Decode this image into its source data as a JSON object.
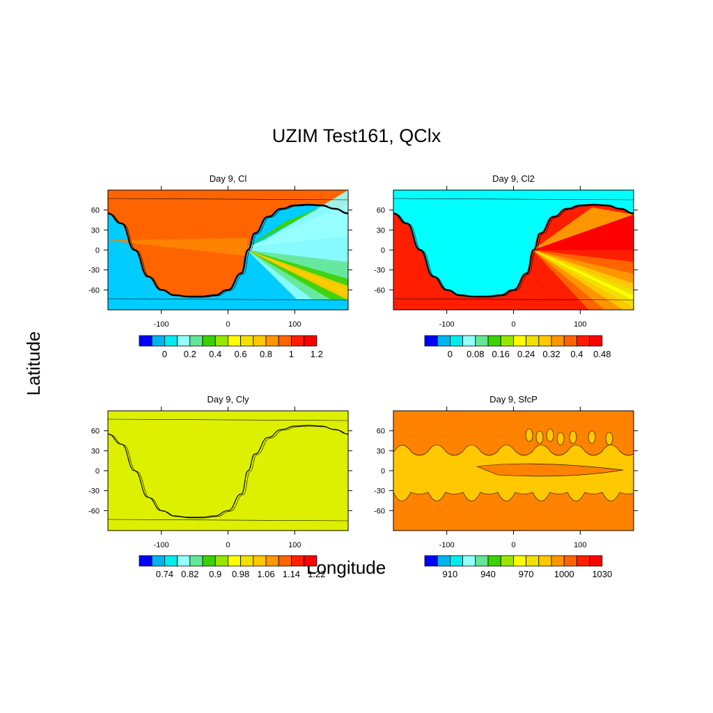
{
  "figure": {
    "title": "UZIM Test161, QClx",
    "ylabel": "Latitude",
    "xlabel": "Longitude"
  },
  "palette": [
    "#0000ff",
    "#00b4f0",
    "#00ecec",
    "#96ffff",
    "#64e696",
    "#3cd200",
    "#96e600",
    "#ffff00",
    "#f0e100",
    "#ffc800",
    "#ff9600",
    "#ff6400",
    "#ff1e00",
    "#ff0000"
  ],
  "chart_data": [
    {
      "type": "heatmap",
      "title": "Day 9, Cl",
      "x_ticks": [
        -100,
        0,
        100
      ],
      "y_ticks": [
        60,
        30,
        0,
        -30,
        -60
      ],
      "xlim": [
        -180,
        180
      ],
      "ylim": [
        -90,
        90
      ],
      "colorbar_labels": [
        "0",
        "0.2",
        "0.4",
        "0.6",
        "0.8",
        "1",
        "1.2"
      ],
      "dominant_colors": [
        "#ff6400",
        "#00ccff",
        "#96ffff"
      ]
    },
    {
      "type": "heatmap",
      "title": "Day 9, Cl2",
      "x_ticks": [
        -100,
        0,
        100
      ],
      "y_ticks": [
        60,
        30,
        0,
        -30,
        -60
      ],
      "xlim": [
        -180,
        180
      ],
      "ylim": [
        -90,
        90
      ],
      "colorbar_labels": [
        "0",
        "0.08",
        "0.16",
        "0.24",
        "0.32",
        "0.4",
        "0.48"
      ],
      "dominant_colors": [
        "#00ffff",
        "#ff1e00",
        "#ff6400"
      ]
    },
    {
      "type": "heatmap",
      "title": "Day 9, Cly",
      "x_ticks": [
        -100,
        0,
        100
      ],
      "y_ticks": [
        60,
        30,
        0,
        -30,
        -60
      ],
      "xlim": [
        -180,
        180
      ],
      "ylim": [
        -90,
        90
      ],
      "colorbar_labels": [
        "0.74",
        "0.82",
        "0.9",
        "0.98",
        "1.06",
        "1.14",
        "1.22"
      ],
      "dominant_colors": [
        "#dcf000"
      ]
    },
    {
      "type": "heatmap",
      "title": "Day 9, SfcP",
      "x_ticks": [
        -100,
        0,
        100
      ],
      "y_ticks": [
        60,
        30,
        0,
        -30,
        -60
      ],
      "xlim": [
        -180,
        180
      ],
      "ylim": [
        -90,
        90
      ],
      "colorbar_labels": [
        "910",
        "940",
        "970",
        "1000",
        "1030"
      ],
      "dominant_colors": [
        "#ff8200",
        "#ffc800"
      ]
    }
  ]
}
